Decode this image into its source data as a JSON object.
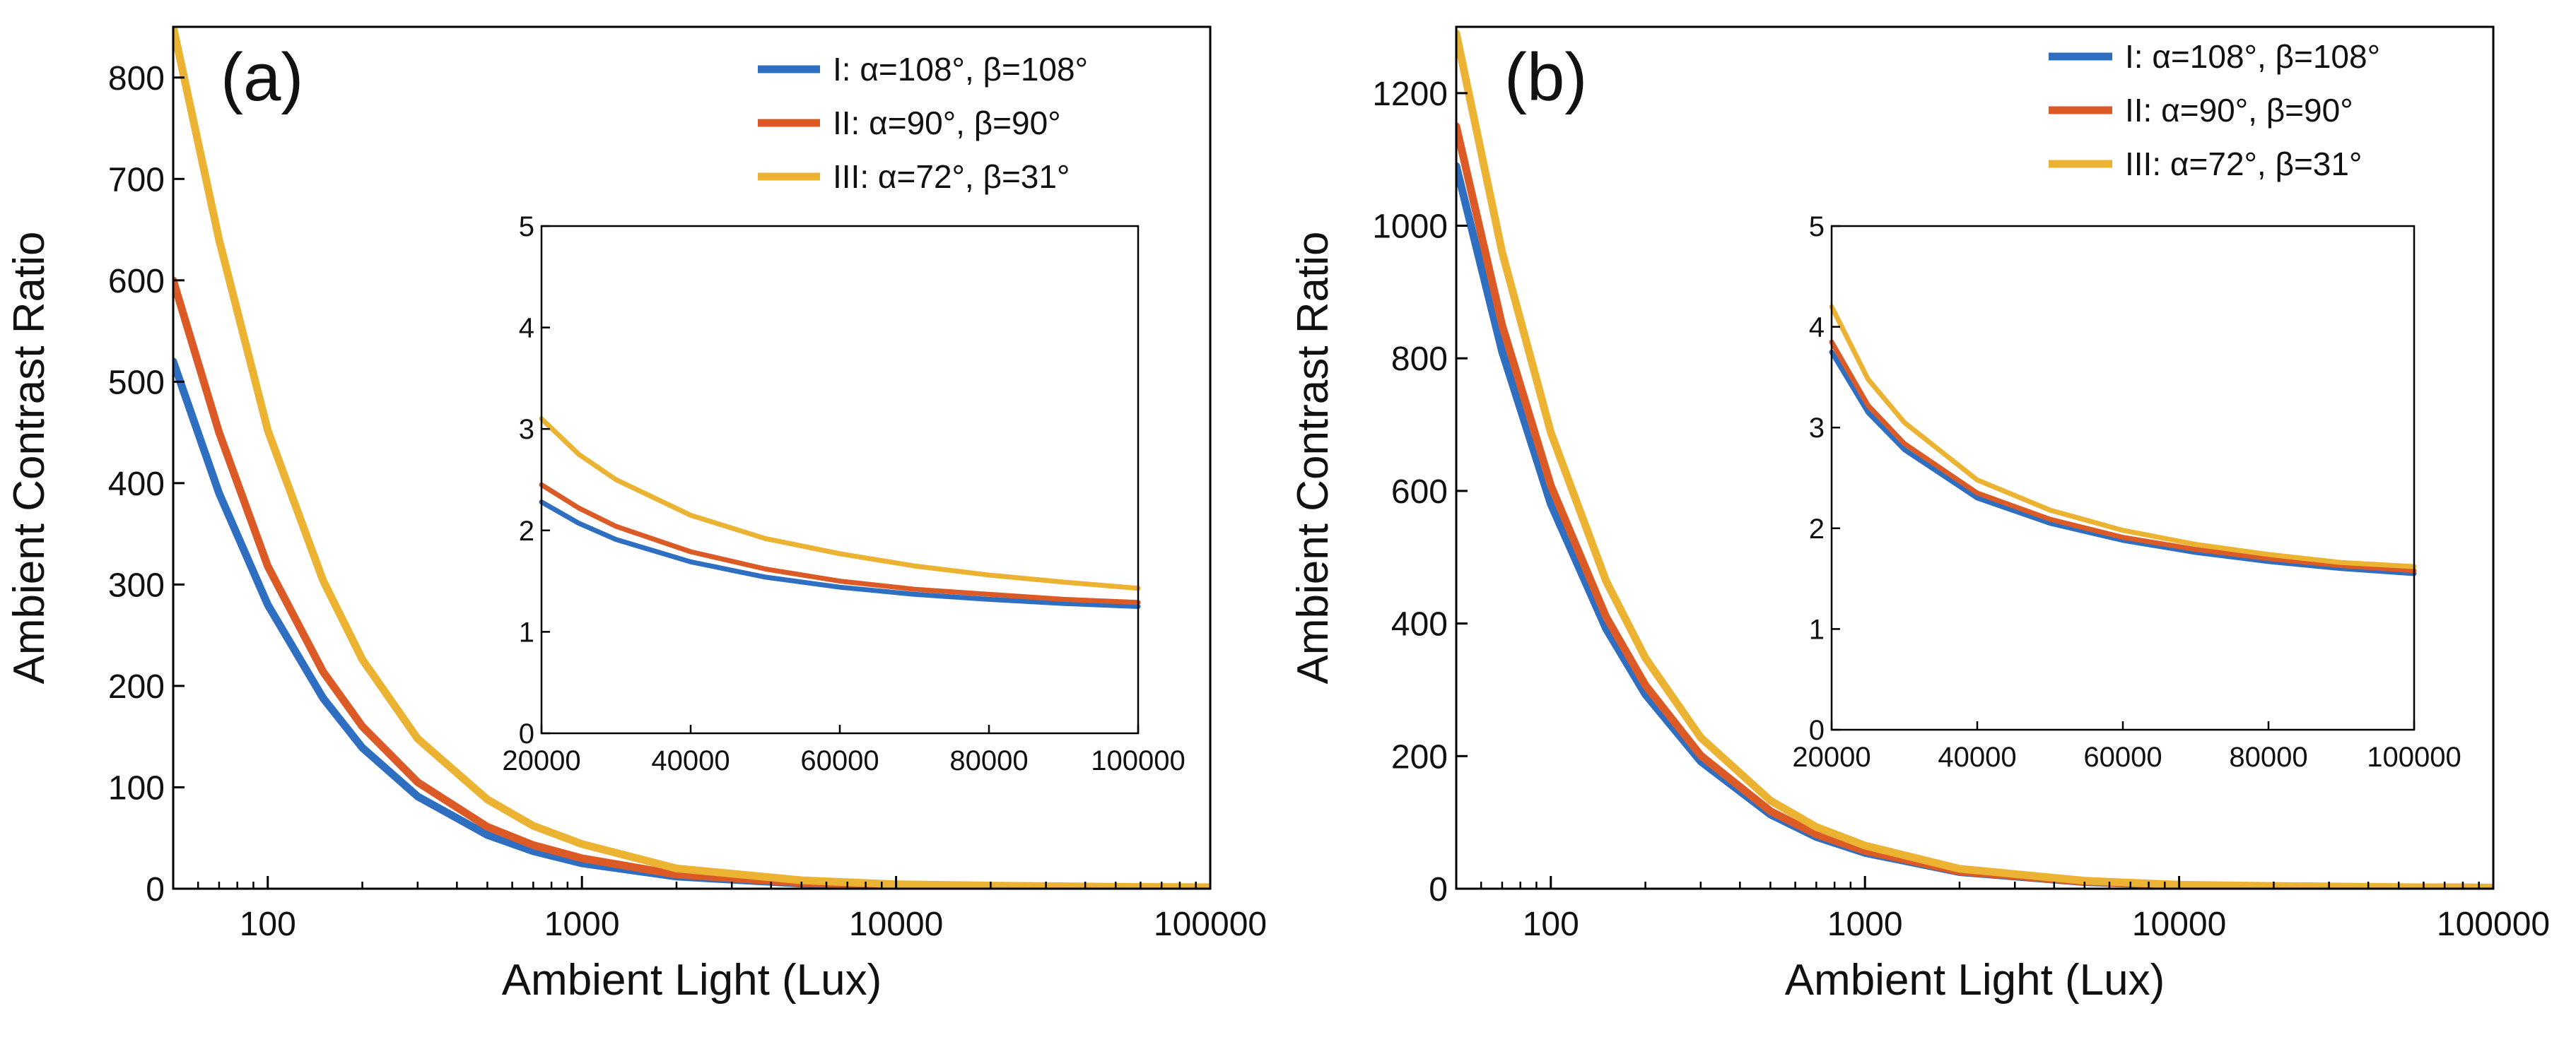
{
  "colors": {
    "I": "#2f6fc2",
    "II": "#db5a26",
    "III": "#ecb333",
    "axis": "#000000"
  },
  "chart_data": [
    {
      "panel_label": "(a)",
      "type": "line",
      "xlabel": "Ambient Light (Lux)",
      "ylabel": "Ambient Contrast Ratio",
      "xscale": "log",
      "xlim": [
        50,
        100000
      ],
      "ylim": [
        0,
        850
      ],
      "xticks": [
        100,
        1000,
        10000,
        100000
      ],
      "xtick_labels": [
        "100",
        "1000",
        "10000",
        "100000"
      ],
      "yticks": [
        0,
        100,
        200,
        300,
        400,
        500,
        600,
        700,
        800
      ],
      "ytick_labels": [
        "0",
        "100",
        "200",
        "300",
        "400",
        "500",
        "600",
        "700",
        "800"
      ],
      "legend_position": "top-right",
      "series": [
        {
          "key": "I",
          "name": "I:  α=108°, β=108°",
          "x": [
            50,
            70,
            100,
            150,
            200,
            300,
            500,
            700,
            1000,
            2000,
            5000,
            10000,
            20000,
            50000,
            100000
          ],
          "y": [
            520,
            390,
            280,
            188,
            139,
            91,
            53,
            37,
            25,
            12,
            5.0,
            2.5,
            2.3,
            1.5,
            1.25
          ]
        },
        {
          "key": "II",
          "name": "II: α=90°, β=90°",
          "x": [
            50,
            70,
            100,
            150,
            200,
            300,
            500,
            700,
            1000,
            2000,
            5000,
            10000,
            20000,
            50000,
            100000
          ],
          "y": [
            600,
            450,
            318,
            214,
            160,
            105,
            61,
            43,
            30,
            14,
            5.8,
            2.9,
            2.5,
            1.6,
            1.3
          ]
        },
        {
          "key": "III",
          "name": "III: α=72°, β=31°",
          "x": [
            50,
            70,
            100,
            150,
            200,
            300,
            500,
            700,
            1000,
            2000,
            5000,
            10000,
            20000,
            50000,
            100000
          ],
          "y": [
            850,
            640,
            452,
            304,
            226,
            148,
            88,
            62,
            44,
            20,
            8.3,
            4.4,
            3.1,
            1.95,
            1.43
          ]
        }
      ],
      "inset": {
        "type": "line",
        "xlim": [
          20000,
          100000
        ],
        "ylim": [
          0,
          5
        ],
        "xticks": [
          20000,
          40000,
          60000,
          80000,
          100000
        ],
        "xtick_labels": [
          "20000",
          "40000",
          "60000",
          "80000",
          "100000"
        ],
        "yticks": [
          0,
          1,
          2,
          3,
          4,
          5
        ],
        "ytick_labels": [
          "0",
          "1",
          "2",
          "3",
          "4",
          "5"
        ],
        "series": [
          {
            "key": "I",
            "x": [
              20000,
              25000,
              30000,
              40000,
              50000,
              60000,
              70000,
              80000,
              90000,
              100000
            ],
            "y": [
              2.28,
              2.07,
              1.91,
              1.69,
              1.54,
              1.44,
              1.37,
              1.32,
              1.28,
              1.25
            ]
          },
          {
            "key": "II",
            "x": [
              20000,
              25000,
              30000,
              40000,
              50000,
              60000,
              70000,
              80000,
              90000,
              100000
            ],
            "y": [
              2.45,
              2.22,
              2.04,
              1.79,
              1.62,
              1.5,
              1.42,
              1.37,
              1.32,
              1.29
            ]
          },
          {
            "key": "III",
            "x": [
              20000,
              25000,
              30000,
              40000,
              50000,
              60000,
              70000,
              80000,
              90000,
              100000
            ],
            "y": [
              3.1,
              2.75,
              2.5,
              2.15,
              1.92,
              1.77,
              1.65,
              1.56,
              1.49,
              1.43
            ]
          }
        ]
      }
    },
    {
      "panel_label": "(b)",
      "type": "line",
      "xlabel": "Ambient Light (Lux)",
      "ylabel": "Ambient Contrast Ratio",
      "xscale": "log",
      "xlim": [
        50,
        100000
      ],
      "ylim": [
        0,
        1300
      ],
      "xticks": [
        100,
        1000,
        10000,
        100000
      ],
      "xtick_labels": [
        "100",
        "1000",
        "10000",
        "100000"
      ],
      "yticks": [
        0,
        200,
        400,
        600,
        800,
        1000,
        1200
      ],
      "ytick_labels": [
        "0",
        "200",
        "400",
        "600",
        "800",
        "1000",
        "1200"
      ],
      "legend_position": "top-right",
      "series": [
        {
          "key": "I",
          "name": "I:  α=108°, β=108°",
          "x": [
            50,
            70,
            100,
            150,
            200,
            300,
            500,
            700,
            1000,
            2000,
            5000,
            10000,
            20000,
            50000,
            100000
          ],
          "y": [
            1090,
            810,
            580,
            392,
            293,
            192,
            112,
            78,
            54,
            25,
            10,
            5,
            3.7,
            2.1,
            1.55
          ]
        },
        {
          "key": "II",
          "name": "II: α=90°, β=90°",
          "x": [
            50,
            70,
            100,
            150,
            200,
            300,
            500,
            700,
            1000,
            2000,
            5000,
            10000,
            20000,
            50000,
            100000
          ],
          "y": [
            1150,
            850,
            608,
            410,
            307,
            201,
            117,
            82,
            57,
            26,
            10.5,
            5.3,
            3.85,
            2.15,
            1.6
          ]
        },
        {
          "key": "III",
          "name": "III: α=72°, β=31°",
          "x": [
            50,
            70,
            100,
            150,
            200,
            300,
            500,
            700,
            1000,
            2000,
            5000,
            10000,
            20000,
            50000,
            100000
          ],
          "y": [
            1290,
            960,
            688,
            464,
            348,
            228,
            133,
            93,
            65,
            30,
            12,
            6,
            4.2,
            2.3,
            1.65
          ]
        }
      ],
      "inset": {
        "type": "line",
        "xlim": [
          20000,
          100000
        ],
        "ylim": [
          0,
          5
        ],
        "xticks": [
          20000,
          40000,
          60000,
          80000,
          100000
        ],
        "xtick_labels": [
          "20000",
          "40000",
          "60000",
          "80000",
          "100000"
        ],
        "yticks": [
          0,
          1,
          2,
          3,
          4,
          5
        ],
        "ytick_labels": [
          "0",
          "1",
          "2",
          "3",
          "4",
          "5"
        ],
        "series": [
          {
            "key": "I",
            "x": [
              20000,
              25000,
              30000,
              40000,
              50000,
              60000,
              70000,
              80000,
              90000,
              100000
            ],
            "y": [
              3.75,
              3.15,
              2.78,
              2.3,
              2.05,
              1.88,
              1.76,
              1.67,
              1.6,
              1.55
            ]
          },
          {
            "key": "II",
            "x": [
              20000,
              25000,
              30000,
              40000,
              50000,
              60000,
              70000,
              80000,
              90000,
              100000
            ],
            "y": [
              3.85,
              3.22,
              2.84,
              2.35,
              2.09,
              1.91,
              1.79,
              1.7,
              1.63,
              1.58
            ]
          },
          {
            "key": "III",
            "x": [
              20000,
              25000,
              30000,
              40000,
              50000,
              60000,
              70000,
              80000,
              90000,
              100000
            ],
            "y": [
              4.2,
              3.48,
              3.05,
              2.48,
              2.18,
              1.98,
              1.84,
              1.74,
              1.66,
              1.62
            ]
          }
        ]
      }
    }
  ]
}
